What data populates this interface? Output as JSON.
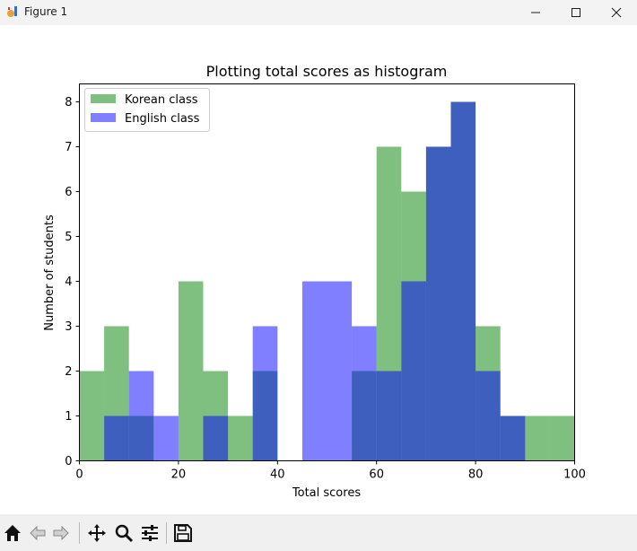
{
  "window": {
    "title": "Figure 1"
  },
  "toolbar": {
    "buttons": [
      {
        "name": "home-icon"
      },
      {
        "name": "back-icon"
      },
      {
        "name": "forward-icon"
      },
      {
        "name": "pan-icon"
      },
      {
        "name": "zoom-icon"
      },
      {
        "name": "configure-subplots-icon"
      },
      {
        "name": "save-icon"
      }
    ]
  },
  "colors": {
    "korean": "#008000",
    "english": "#0000ff",
    "overlap": "#3c5ebd"
  },
  "chart_data": {
    "type": "bar",
    "title": "Plotting total scores as histogram",
    "xlabel": "Total scores",
    "ylabel": "Number of students",
    "xlim": [
      0,
      100
    ],
    "ylim": [
      0,
      8.4
    ],
    "xticks": [
      0,
      20,
      40,
      60,
      80,
      100
    ],
    "yticks": [
      0,
      1,
      2,
      3,
      4,
      5,
      6,
      7,
      8
    ],
    "legend_position": "upper-left",
    "bin_edges": [
      0,
      5,
      10,
      15,
      20,
      25,
      30,
      35,
      40,
      45,
      50,
      55,
      60,
      65,
      70,
      75,
      80,
      85,
      90,
      95,
      100
    ],
    "series": [
      {
        "name": "Korean class",
        "color": "#008000",
        "alpha": 0.5,
        "values": [
          2,
          3,
          1,
          0,
          4,
          2,
          1,
          2,
          0,
          0,
          0,
          2,
          7,
          6,
          7,
          8,
          3,
          1,
          1,
          1
        ]
      },
      {
        "name": "English class",
        "color": "#0000ff",
        "alpha": 0.5,
        "values": [
          0,
          1,
          2,
          1,
          0,
          1,
          0,
          3,
          0,
          4,
          4,
          3,
          2,
          4,
          7,
          8,
          2,
          1,
          0,
          0
        ]
      }
    ]
  }
}
